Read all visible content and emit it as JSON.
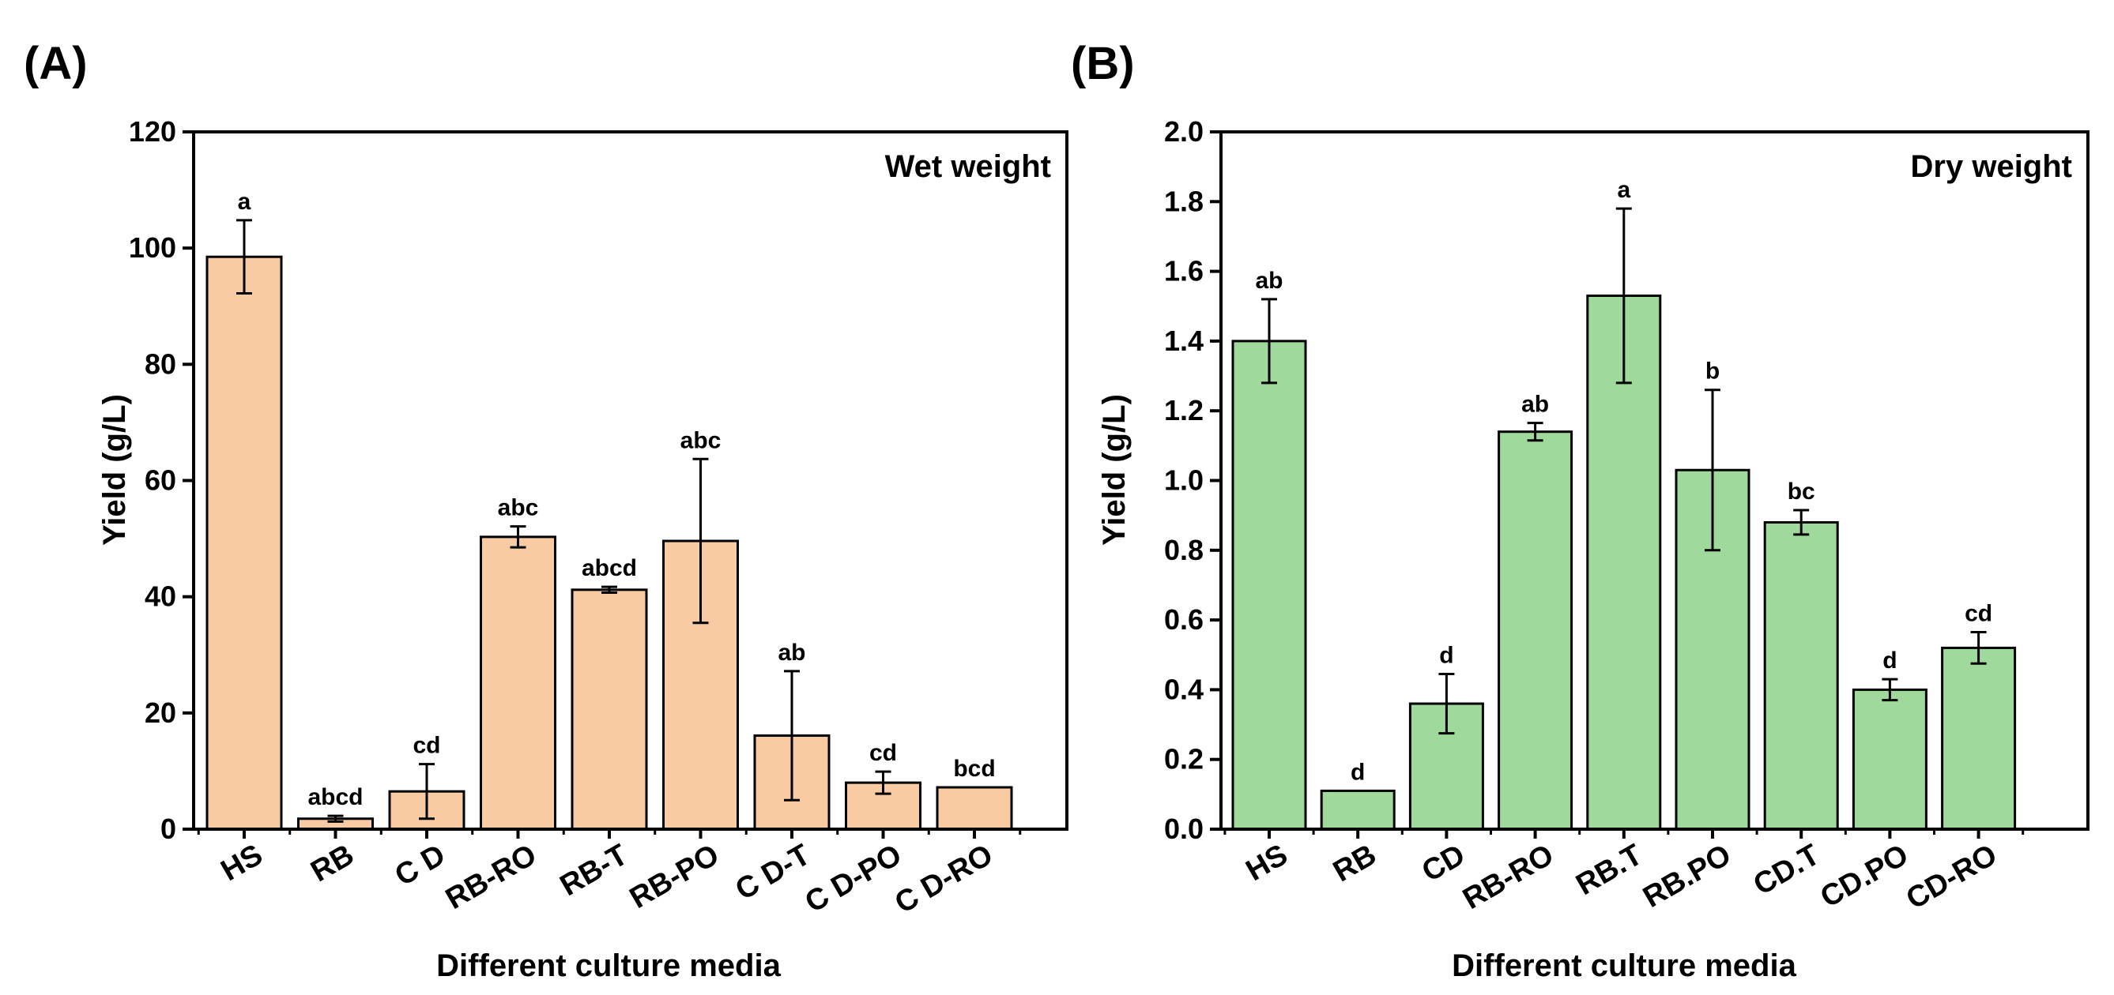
{
  "chart_data": [
    {
      "type": "bar",
      "panel": "(A)",
      "legend": "Wet weight",
      "legend_position": "top-right",
      "xlabel": "Different culture media",
      "ylabel": "Yield (g/L)",
      "ylim": [
        0,
        120
      ],
      "yticks": [
        "0",
        "20",
        "40",
        "60",
        "80",
        "100",
        "120"
      ],
      "categories": [
        "HS",
        "RB",
        "C D",
        "RB-RO",
        "RB-T",
        "RB-PO",
        "C D-T",
        "C D-PO",
        "C D-RO"
      ],
      "values": [
        98.5,
        1.8,
        6.5,
        50.3,
        41.2,
        49.6,
        16.1,
        8.0,
        7.2
      ],
      "errors": [
        6.3,
        0.5,
        4.7,
        1.8,
        0.5,
        14.1,
        11.1,
        1.9,
        0
      ],
      "significance": [
        "a",
        "abcd",
        "cd",
        "abc",
        "abcd",
        "abc",
        "ab",
        "cd",
        "bcd"
      ],
      "bar_color": "#f9cba3",
      "grid": false
    },
    {
      "type": "bar",
      "panel": "(B)",
      "legend": "Dry weight",
      "legend_position": "top-right",
      "xlabel": "Different culture media",
      "ylabel": "Yield (g/L)",
      "ylim": [
        0,
        2.0
      ],
      "yticks": [
        "0.0",
        "0.2",
        "0.4",
        "0.6",
        "0.8",
        "1.0",
        "1.2",
        "1.4",
        "1.6",
        "1.8",
        "2.0"
      ],
      "categories": [
        "HS",
        "RB",
        "CD",
        "RB-RO",
        "RB.T",
        "RB.PO",
        "CD.T",
        "CD.PO",
        "CD-RO"
      ],
      "values": [
        1.4,
        0.11,
        0.36,
        1.14,
        1.53,
        1.03,
        0.88,
        0.4,
        0.52
      ],
      "errors": [
        0.12,
        0,
        0.085,
        0.025,
        0.25,
        0.23,
        0.035,
        0.03,
        0.045
      ],
      "significance": [
        "ab",
        "d",
        "d",
        "ab",
        "a",
        "b",
        "bc",
        "d",
        "cd"
      ],
      "bar_color": "#9fd99b",
      "grid": false
    }
  ]
}
